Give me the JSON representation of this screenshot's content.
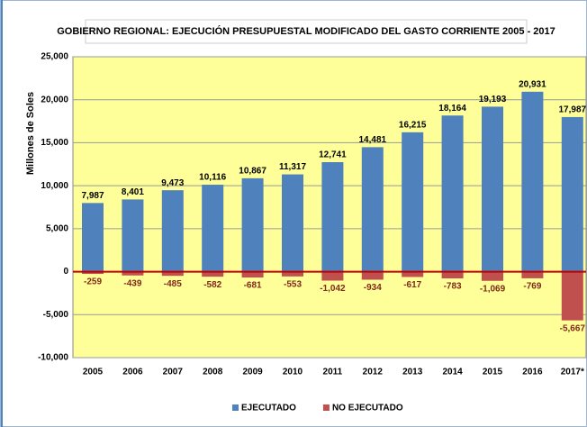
{
  "chart_data": {
    "type": "bar",
    "title": "GOBIERNO REGIONAL: EJECUCIÓN PRESUPUESTAL MODIFICADO DEL GASTO CORRIENTE 2005 - 2017",
    "y_label": "Millones de Soles",
    "categories": [
      "2005",
      "2006",
      "2007",
      "2008",
      "2009",
      "2010",
      "2011",
      "2012",
      "2013",
      "2014",
      "2015",
      "2016",
      "2017*"
    ],
    "series": [
      {
        "name": "EJECUTADO",
        "color": "#4f81bd",
        "values": [
          7987,
          8401,
          9473,
          10116,
          10867,
          11317,
          12741,
          14481,
          16215,
          18164,
          19193,
          20931,
          17987
        ],
        "value_labels": [
          "7,987",
          "8,401",
          "9,473",
          "10,116",
          "10,867",
          "11,317",
          "12,741",
          "14,481",
          "16,215",
          "18,164",
          "19,193",
          "20,931",
          "17,987"
        ]
      },
      {
        "name": "NO EJECUTADO",
        "color": "#c0504d",
        "values": [
          -259,
          -439,
          -485,
          -582,
          -681,
          -553,
          -1042,
          -934,
          -617,
          -783,
          -1069,
          -769,
          -5667
        ],
        "value_labels": [
          "-259",
          "-439",
          "-485",
          "-582",
          "-681",
          "-553",
          "-1,042",
          "-934",
          "-617",
          "-783",
          "-1,069",
          "-769",
          "-5,667"
        ]
      }
    ],
    "ylim": [
      -10000,
      25000
    ],
    "yticks": [
      {
        "value": -10000,
        "label": "-10,000"
      },
      {
        "value": -5000,
        "label": "-5,000"
      },
      0,
      {
        "value": 5000,
        "label": "5,000"
      },
      {
        "value": 10000,
        "label": "10,000"
      },
      {
        "value": 15000,
        "label": "15,000"
      },
      {
        "value": 20000,
        "label": "20,000"
      },
      {
        "value": 25000,
        "label": "25,000"
      }
    ],
    "grid": true,
    "plot_background": "#ffff99",
    "legend": "bottom"
  }
}
